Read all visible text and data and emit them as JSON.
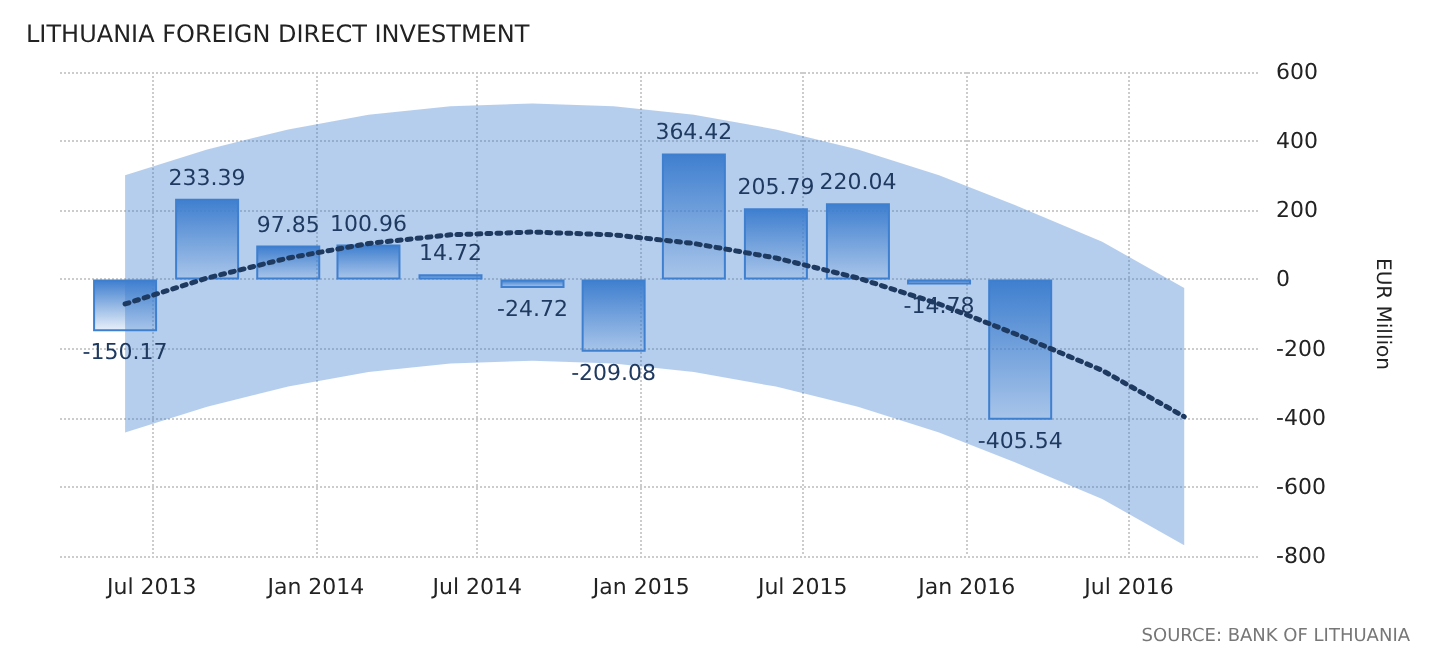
{
  "chart_data": {
    "type": "bar",
    "title": "LITHUANIA FOREIGN DIRECT INVESTMENT",
    "ylabel": "EUR Million",
    "annotations": [
      "SOURCE: BANK OF LITHUANIA"
    ],
    "x": [
      "2013-06",
      "2013-09",
      "2013-12",
      "2014-03",
      "2014-06",
      "2014-09",
      "2014-12",
      "2015-03",
      "2015-06",
      "2015-09",
      "2015-12",
      "2016-03"
    ],
    "series": [
      {
        "color": "#3f7fcf",
        "values": [
          -150.17,
          233.39,
          97.85,
          100.96,
          14.72,
          -24.72,
          -209.08,
          364.42,
          205.79,
          220.04,
          -14.78,
          -405.54
        ],
        "value_labels": [
          "-150.17",
          "233.39",
          "97.85",
          "100.96",
          "14.72",
          "-24.72",
          "-209.08",
          "364.42",
          "205.79",
          "220.04",
          "-14.78",
          "-405.54"
        ]
      },
      {
        "type": "line",
        "color": "#1f3a60",
        "line_style": "dotted",
        "marker": "none",
        "x": [
          "2013-06",
          "2013-09",
          "2013-12",
          "2014-03",
          "2014-06",
          "2014-09",
          "2014-12",
          "2015-03",
          "2015-06",
          "2015-09",
          "2015-12",
          "2016-03",
          "2016-06",
          "2016-09"
        ],
        "values": [
          -71,
          4,
          62,
          104,
          129,
          137,
          129,
          104,
          62,
          4,
          -71,
          -163,
          -263,
          -397
        ],
        "lower": [
          -443,
          -368,
          -310,
          -268,
          -243,
          -235,
          -243,
          -268,
          -310,
          -368,
          -443,
          -535,
          -635,
          -769
        ],
        "upper": [
          301,
          376,
          434,
          476,
          501,
          509,
          501,
          476,
          434,
          376,
          301,
          209,
          109,
          -25
        ]
      }
    ],
    "xlim": [
      "2013-03-20",
      "2016-11-25"
    ],
    "xticks": [
      {
        "value": "2013-07",
        "label": "Jul 2013"
      },
      {
        "value": "2014-01",
        "label": "Jan 2014"
      },
      {
        "value": "2014-07",
        "label": "Jul 2014"
      },
      {
        "value": "2015-01",
        "label": "Jan 2015"
      },
      {
        "value": "2015-07",
        "label": "Jul 2015"
      },
      {
        "value": "2016-01",
        "label": "Jan 2016"
      },
      {
        "value": "2016-07",
        "label": "Jul 2016"
      }
    ],
    "ylim": [
      -800,
      600
    ],
    "yticks": [
      -800,
      -600,
      -400,
      -200,
      0,
      200,
      400,
      600
    ],
    "grid": true
  }
}
